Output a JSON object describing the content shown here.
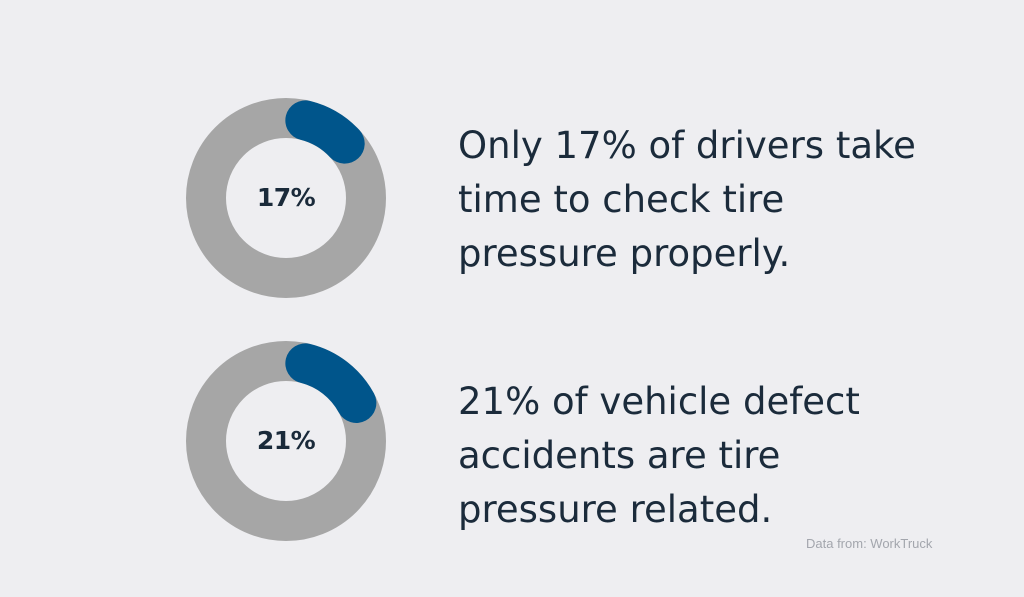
{
  "colors": {
    "background": "#eeeef1",
    "track": "#a6a6a6",
    "accent": "#00558b",
    "text": "#1b2b3b",
    "source_text": "#a3a6ad"
  },
  "chart_data": [
    {
      "type": "pie",
      "style": "donut",
      "values": [
        17,
        83
      ],
      "center_label": "17%"
    },
    {
      "type": "pie",
      "style": "donut",
      "values": [
        21,
        79
      ],
      "center_label": "21%"
    }
  ],
  "stats": [
    {
      "text": "Only 17% of drivers take time to check tire pressure properly."
    },
    {
      "text": "21% of vehicle defect accidents are tire pressure related."
    }
  ],
  "source": "Data from: WorkTruck"
}
